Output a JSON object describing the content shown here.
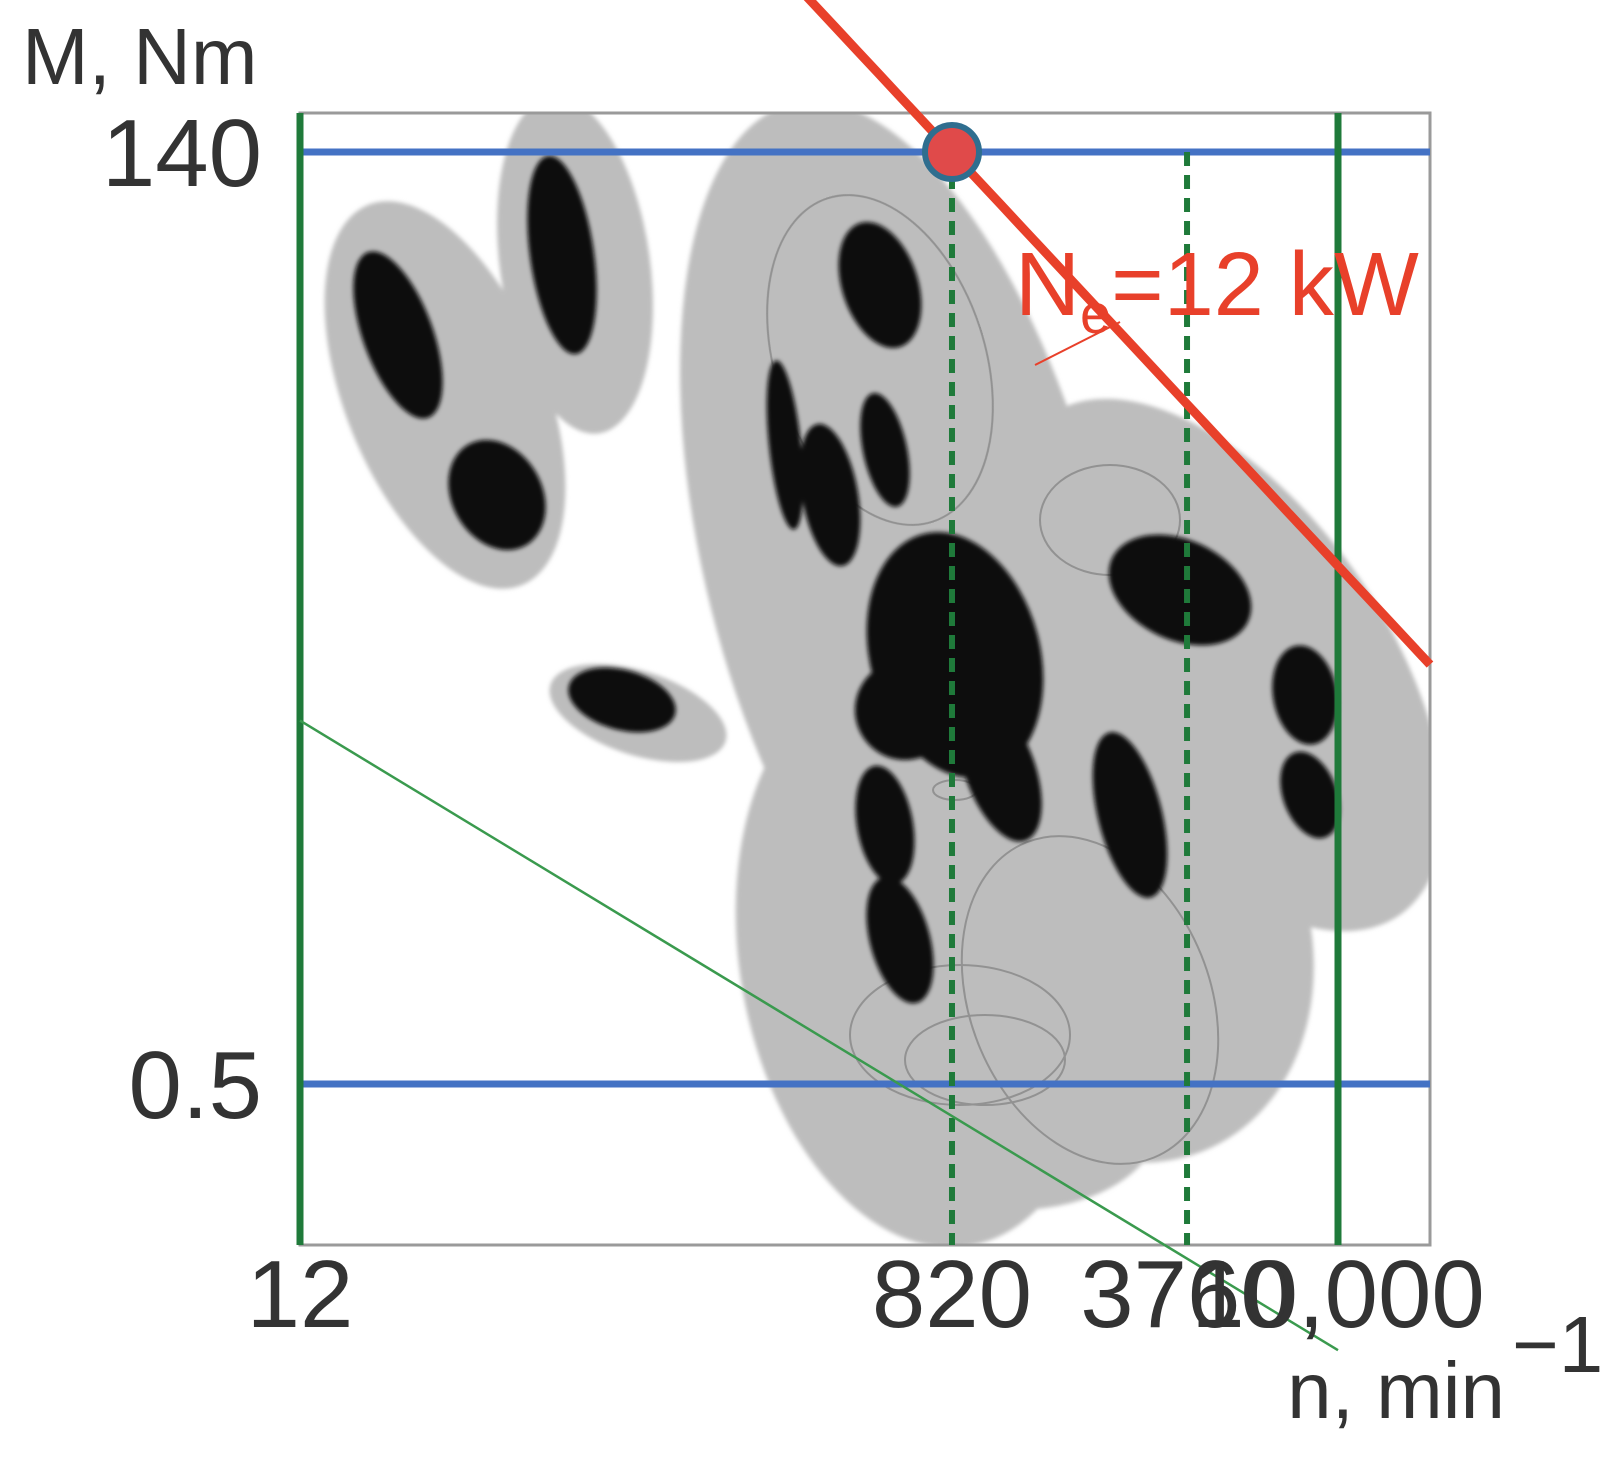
{
  "chart_data": {
    "type": "heatmap",
    "title": "",
    "ylabel": "M, Nm",
    "xlabel": "n, min",
    "xlabel_superscript": "−1",
    "x_ticks": [
      {
        "value": 12,
        "label": "12"
      },
      {
        "value": 820,
        "label": "820"
      },
      {
        "value": 3760,
        "label": "3760"
      },
      {
        "value": 10000,
        "label": "10,000"
      }
    ],
    "y_ticks": [
      {
        "value": 140,
        "label": "140"
      },
      {
        "value": 0.5,
        "label": "0.5"
      }
    ],
    "x_scale": "log",
    "y_scale": "log",
    "xlim": [
      12,
      17000
    ],
    "ylim": [
      0.1,
      240
    ],
    "grid": false,
    "reference_lines": {
      "horizontal_blue": [
        140,
        0.5
      ],
      "vertical_solid_green": [
        12,
        10000
      ],
      "vertical_dashed_green": [
        820,
        3760
      ]
    },
    "max_torque_point": {
      "n": 820,
      "M": 140
    },
    "power_curve": {
      "name_base": "N",
      "name_sub": "e",
      "name_rest": "=12 kW",
      "power_kw": 12,
      "color": "#e8402a"
    },
    "min_power_line": {
      "from": {
        "n": 12,
        "M": 4.5
      },
      "to": {
        "n": 10000,
        "M": 0.1
      }
    },
    "colors": {
      "blue": "#4472c4",
      "green": "#1f7a3a",
      "red": "#e8402a",
      "density_light": "#b4b4b4",
      "density_dark": "#0a0a0a"
    }
  }
}
